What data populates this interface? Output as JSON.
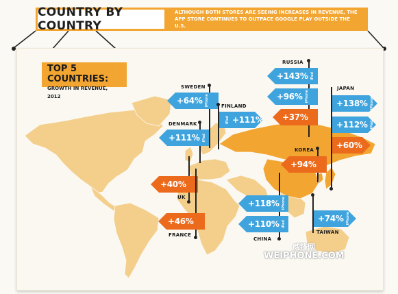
{
  "header": {
    "title": "COUNTRY BY COUNTRY",
    "subtitle": "ALTHOUGH BOTH STORES ARE SEEING INCREASES IN REVENUE, THE APP STORE CONTINUES TO OUTPACE GOOGLE PLAY OUTSIDE THE U.S."
  },
  "top5": {
    "title": "TOP 5 COUNTRIES:",
    "subtitle": "GROWTH IN REVENUE, 2012"
  },
  "colors": {
    "app_store": "#3fa4de",
    "google_play": "#ec6a1c",
    "accent": "#f2a531",
    "land": "#f4cf8c",
    "highlight_land": "#f2a531"
  },
  "countries": {
    "sweden": {
      "label": "SWEDEN",
      "flags": [
        {
          "value": "+64%",
          "device": "iPhone"
        }
      ]
    },
    "finland": {
      "label": "FINLAND",
      "flags": [
        {
          "value": "+111%",
          "device": "iPad"
        }
      ]
    },
    "denmark": {
      "label": "DENMARK",
      "flags": [
        {
          "value": "+111%",
          "device": "iPad"
        }
      ]
    },
    "uk": {
      "label": "UK",
      "flags": [
        {
          "value": "+40%",
          "device": ""
        }
      ]
    },
    "france": {
      "label": "FRANCE",
      "flags": [
        {
          "value": "+46%",
          "device": ""
        }
      ]
    },
    "russia": {
      "label": "RUSSIA",
      "flags": [
        {
          "value": "+143%",
          "device": "iPad"
        },
        {
          "value": "+96%",
          "device": "iPhone"
        },
        {
          "value": "+37%",
          "device": ""
        }
      ]
    },
    "japan": {
      "label": "JAPAN",
      "flags": [
        {
          "value": "+138%",
          "device": "iPhone"
        },
        {
          "value": "+112%",
          "device": "iPad"
        },
        {
          "value": "+60%",
          "device": ""
        }
      ]
    },
    "korea": {
      "label": "KOREA",
      "flags": [
        {
          "value": "+94%",
          "device": ""
        }
      ]
    },
    "china": {
      "label": "CHINA",
      "flags": [
        {
          "value": "+118%",
          "device": "iPhone"
        },
        {
          "value": "+110%",
          "device": "iPad"
        }
      ]
    },
    "taiwan": {
      "label": "TAIWAN",
      "flags": [
        {
          "value": "+74%",
          "device": "iPhone"
        }
      ]
    }
  },
  "watermark": {
    "text": "WEIPHONE.COM",
    "cn": "威锋网"
  }
}
